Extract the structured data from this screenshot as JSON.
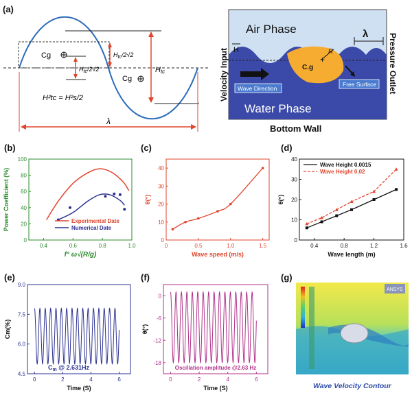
{
  "panels": {
    "a": {
      "label": "(a)",
      "schematic": {
        "cg": "Cg",
        "half_htc_a": "H",
        "half_htc_sub": "tc",
        "half_htc_suffix": "/2√2",
        "htc": "H",
        "htc_sub": "tc",
        "lambda": "λ",
        "equation": "H²tc = H²s/2"
      },
      "cfd": {
        "air": "Air Phase",
        "water": "Water Phase",
        "bottom": "Bottom Wall",
        "velocity_input": "Velocity Input",
        "pressure_outlet": "Pressure Outlet",
        "wave_direction": "Wave Direction",
        "free_surface": "Free Surface",
        "cg": "C.g",
        "r": "R",
        "h": "H",
        "lambda": "λ",
        "colors": {
          "sky": "#cfe0f2",
          "water": "#3b4aa8",
          "body": "#f5ac30"
        }
      }
    },
    "b": {
      "label": "(b)",
      "legend": [
        "Experimental Date",
        "Numerical Date"
      ],
      "colors": [
        "#e0442c",
        "#2b3190"
      ]
    },
    "c": {
      "label": "(c)"
    },
    "d": {
      "label": "(d)",
      "legend": [
        "Wave Height 0.0015",
        "Wave Height 0.02"
      ],
      "colors": [
        "#111111",
        "#e0442c"
      ]
    },
    "e": {
      "label": "(e)",
      "annotation": "C",
      "annotation_sub": "m",
      "annotation_suffix": " @ 2.631Hz",
      "color": "#2b3190"
    },
    "f": {
      "label": "(f)",
      "annotation": "Oscillation amplitude @2.63 Hz",
      "color": "#b0308a"
    },
    "g": {
      "label": "(g)",
      "caption": "Wave Velocity Contour",
      "logo": "ANSYS"
    }
  },
  "chart_data": [
    {
      "id": "b",
      "type": "line",
      "xlabel": "f° ω√(R/g)",
      "ylabel": "Power Coefficient (%)",
      "xlim": [
        0.3,
        1.0
      ],
      "ylim": [
        0,
        100
      ],
      "xticks": [
        0.4,
        0.6,
        0.8,
        1.0
      ],
      "yticks": [
        0,
        20,
        40,
        60,
        80,
        100
      ],
      "series": [
        {
          "name": "Experimental Date",
          "x": [
            0.42,
            0.5,
            0.6,
            0.7,
            0.78,
            0.86,
            0.94,
            0.98
          ],
          "y": [
            25,
            48,
            70,
            83,
            88,
            84,
            72,
            61
          ]
        },
        {
          "name": "Numerical Date",
          "x": [
            0.5,
            0.6,
            0.7,
            0.78,
            0.85,
            0.92,
            0.95
          ],
          "y": [
            25,
            34,
            48,
            56,
            56,
            49,
            43
          ]
        },
        {
          "name": "Numerical points",
          "x": [
            0.5,
            0.58,
            0.82,
            0.88,
            0.92,
            0.95
          ],
          "y": [
            25,
            40,
            54,
            57,
            56,
            38
          ]
        }
      ]
    },
    {
      "id": "c",
      "type": "line",
      "xlabel": "Wave speed (m/s)",
      "ylabel": "θ(°)",
      "xlim": [
        0,
        1.6
      ],
      "ylim": [
        0,
        45
      ],
      "xticks": [
        0,
        0.5,
        1.0,
        1.5
      ],
      "yticks": [
        0,
        10,
        20,
        30,
        40
      ],
      "series": [
        {
          "x": [
            0.1,
            0.3,
            0.5,
            0.8,
            1.0,
            1.5
          ],
          "y": [
            6,
            10,
            12,
            16,
            20,
            40
          ]
        }
      ]
    },
    {
      "id": "d",
      "type": "line",
      "xlabel": "Wave length (m)",
      "ylabel": "θ(°)",
      "xlim": [
        0.2,
        1.6
      ],
      "ylim": [
        0,
        40
      ],
      "xticks": [
        0.4,
        0.8,
        1.2,
        1.6
      ],
      "yticks": [
        0,
        10,
        20,
        30,
        40
      ],
      "series": [
        {
          "name": "Wave Height 0.0015",
          "x": [
            0.3,
            0.5,
            0.7,
            0.9,
            1.2,
            1.5
          ],
          "y": [
            6,
            9,
            12,
            15,
            20,
            25
          ]
        },
        {
          "name": "Wave Height 0.02",
          "x": [
            0.3,
            0.5,
            0.7,
            0.9,
            1.2,
            1.5
          ],
          "y": [
            8,
            11,
            15,
            19,
            24,
            35
          ]
        }
      ]
    },
    {
      "id": "e",
      "type": "line",
      "xlabel": "Time (S)",
      "ylabel": "Cm(%)",
      "xlim": [
        -0.5,
        6.8
      ],
      "ylim": [
        4.5,
        9.0
      ],
      "xticks": [
        0,
        2,
        4,
        6
      ],
      "yticks": [
        4.5,
        6.0,
        7.5,
        9.0
      ],
      "signal": {
        "t_start": 0,
        "t_end": 6,
        "frequency_hz": 2.631,
        "mean": 6.4,
        "amplitude": 1.4
      }
    },
    {
      "id": "f",
      "type": "line",
      "xlabel": "Time (S)",
      "ylabel": "θ(°)",
      "xlim": [
        -0.5,
        6.8
      ],
      "ylim": [
        -21,
        3
      ],
      "xticks": [
        0,
        2,
        4,
        6
      ],
      "yticks": [
        0,
        -6,
        -12,
        -18
      ],
      "signal": {
        "t_start": 0,
        "t_end": 6,
        "frequency_hz": 2.63,
        "mean": -8.5,
        "amplitude": 9.5
      }
    }
  ]
}
